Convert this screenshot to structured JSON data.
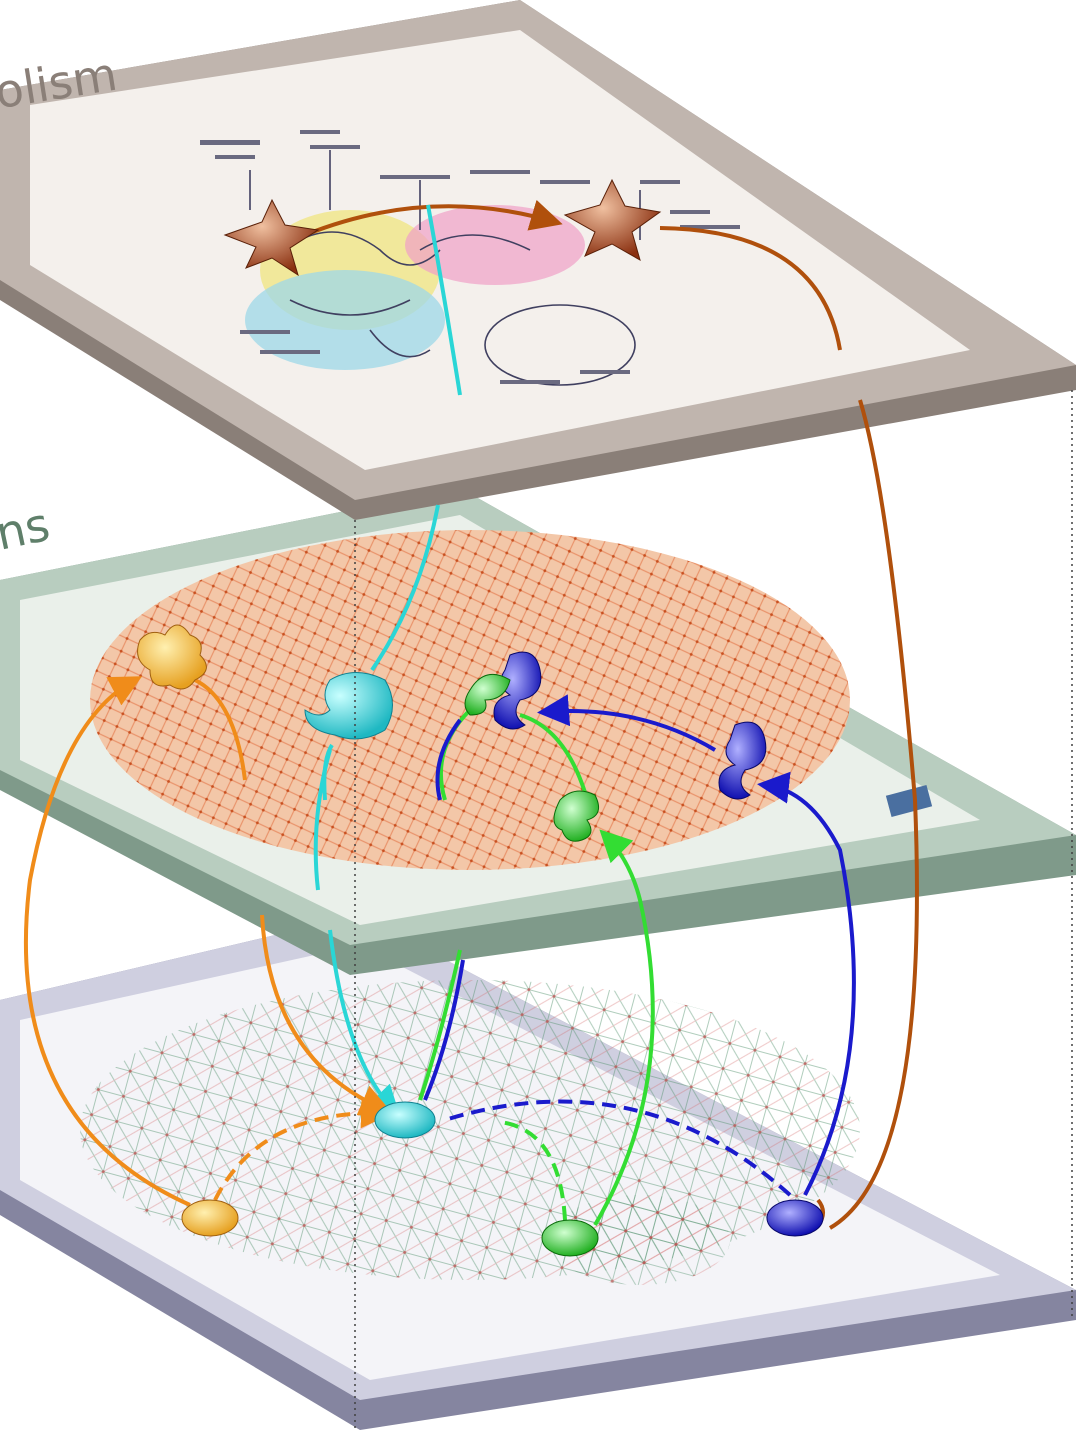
{
  "layers": [
    {
      "id": "metabolism",
      "label_visible": "olism",
      "edge_color": "#8a7f78",
      "panel_color": "#efebe6"
    },
    {
      "id": "proteins",
      "label_visible": "ns",
      "edge_color": "#8fa89a",
      "panel_color": "#e9efe9"
    },
    {
      "id": "genes",
      "label_visible": "",
      "edge_color": "#8585a0",
      "panel_color": "#eeeef5"
    }
  ],
  "colors": {
    "orange": "#f08c1a",
    "cyan": "#2ad6d6",
    "green": "#33dd33",
    "blue": "#1a1acc",
    "brown": "#b0500c",
    "network_red": "#e06a3a",
    "network_green": "#4f8f6a"
  }
}
